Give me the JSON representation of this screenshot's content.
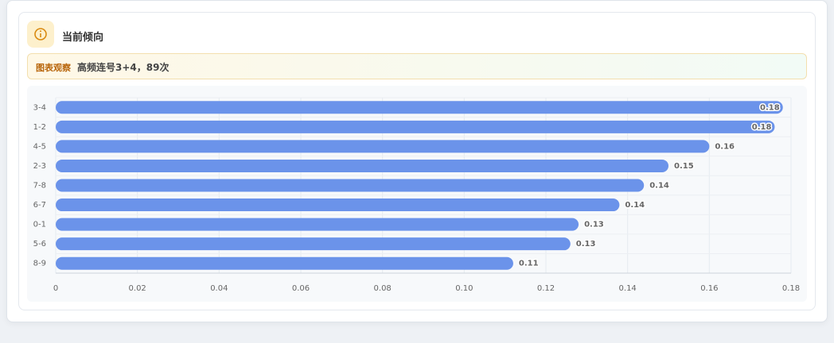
{
  "header": {
    "title": "当前倾向"
  },
  "observation": {
    "label": "图表观察",
    "text": "高频连号3+4，89次"
  },
  "chart_data": {
    "type": "bar",
    "orientation": "horizontal",
    "categories": [
      "3-4",
      "1-2",
      "4-5",
      "2-3",
      "7-8",
      "6-7",
      "0-1",
      "5-6",
      "8-9"
    ],
    "values": [
      0.178,
      0.176,
      0.16,
      0.15,
      0.144,
      0.138,
      0.128,
      0.126,
      0.112
    ],
    "value_labels": [
      "0.18",
      "0.18",
      "0.16",
      "0.15",
      "0.14",
      "0.14",
      "0.13",
      "0.13",
      "0.11"
    ],
    "color": "#6b93ea",
    "xlim": [
      0,
      0.18
    ],
    "xticks": [
      0,
      0.02,
      0.04,
      0.06,
      0.08,
      {
        "value": 0.1,
        "label": "0.10"
      },
      0.12,
      0.14,
      0.16,
      0.18
    ],
    "grid": true
  }
}
